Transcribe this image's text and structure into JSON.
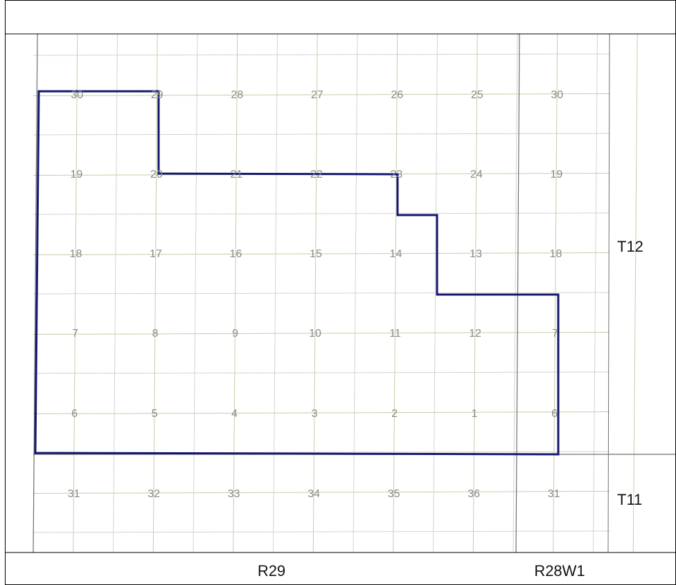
{
  "map": {
    "township_labels": [
      "T12",
      "T11"
    ],
    "range_labels": [
      "R29",
      "R28W1"
    ],
    "section_rows": [
      [
        30,
        29,
        28,
        27,
        26,
        25,
        30
      ],
      [
        19,
        20,
        21,
        22,
        23,
        24,
        19
      ],
      [
        18,
        17,
        16,
        15,
        14,
        13,
        18
      ],
      [
        7,
        8,
        9,
        10,
        11,
        12,
        7
      ],
      [
        6,
        5,
        4,
        3,
        2,
        1,
        6
      ],
      [
        31,
        32,
        33,
        34,
        35,
        36,
        31
      ]
    ],
    "colors": {
      "boundary": "#14166e",
      "quarter_lines": "#c9cba6",
      "section_lines": "#d2d2d2",
      "township_lines": "#6e6e6e",
      "section_numbers": "#8a8a8a",
      "labels": "#111111",
      "frame": "#000000"
    }
  }
}
